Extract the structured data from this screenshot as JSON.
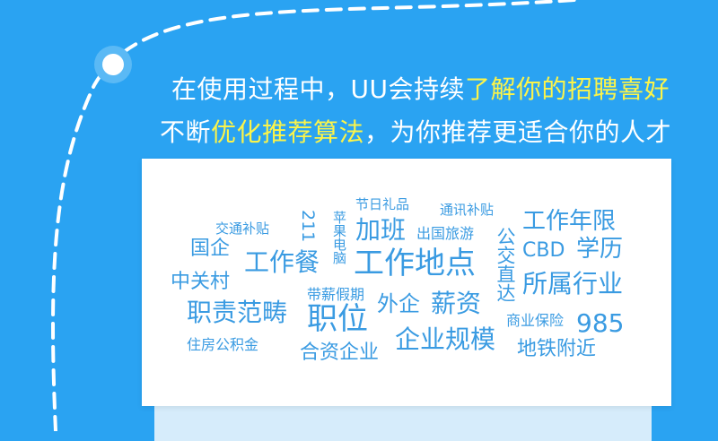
{
  "headline": {
    "line1_plain": "在使用过程中，UU会持续",
    "line1_highlight": "了解你的招聘喜好",
    "line2_prefix": "不断",
    "line2_highlight": "优化推荐算法",
    "line2_suffix": "，为你推荐更适合你的人才"
  },
  "tags": {
    "t01": "节日礼品",
    "t02": "通讯补贴",
    "t03": "交通补贴",
    "t04": "211",
    "t05": "苹果电脑",
    "t06": "加班",
    "t07": "出国旅游",
    "t08": "工作年限",
    "t09": "国企",
    "t10": "公交直达",
    "t11": "CBD",
    "t12": "学历",
    "t13": "工作餐",
    "t14": "工作地点",
    "t15": "中关村",
    "t16": "所属行业",
    "t17": "带薪假期",
    "t18": "外企",
    "t19": "薪资",
    "t20": "职责范畴",
    "t21": "职位",
    "t22": "商业保险",
    "t23": "985",
    "t24": "住房公积金",
    "t25": "企业规模",
    "t26": "合资企业",
    "t27": "地铁附近"
  },
  "colors": {
    "background": "#2aa3f2",
    "highlight": "#fbf44a",
    "tag": "#3a9be2",
    "card": "#ffffff"
  }
}
